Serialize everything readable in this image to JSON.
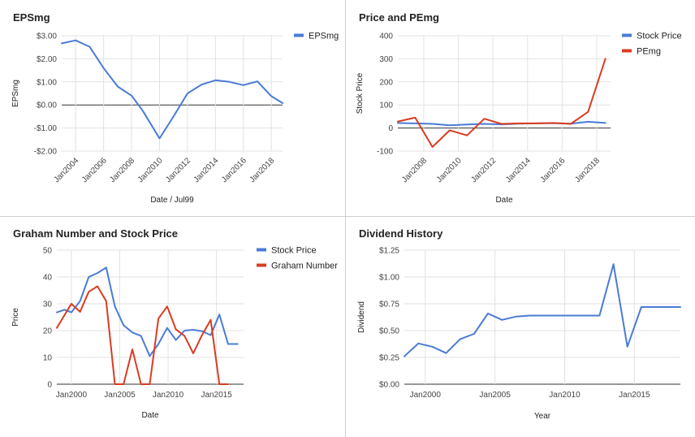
{
  "chart_data": [
    {
      "type": "line",
      "title": "EPSmg",
      "xlabel": "Date / Jul99",
      "ylabel": "EPSmg",
      "x_range": [
        2003,
        2018.8
      ],
      "ylim": [
        -2,
        3
      ],
      "y_ticks": [
        3,
        2,
        1,
        0,
        -1,
        -2
      ],
      "y_tick_labels": [
        "$3.00",
        "$2.00",
        "$1.00",
        "$0.00",
        "-$1.00",
        "-$2.00"
      ],
      "x_ticks": [
        2004,
        2006,
        2008,
        2010,
        2012,
        2014,
        2016,
        2018
      ],
      "x_tick_labels": [
        "Jan2004",
        "Jan2006",
        "Jan2008",
        "Jan2010",
        "Jan2012",
        "Jan2014",
        "Jan2016",
        "Jan2018"
      ],
      "x_label_rotated": true,
      "legend_position": "top-right",
      "series": [
        {
          "name": "EPSmg",
          "color": "#4a7bd6",
          "x": [
            2003.0,
            2004.0,
            2005.0,
            2006.0,
            2007.0,
            2008.0,
            2008.8,
            2010.0,
            2011.0,
            2012.0,
            2013.0,
            2014.0,
            2015.0,
            2016.0,
            2017.0,
            2018.0,
            2018.8
          ],
          "values": [
            2.67,
            2.8,
            2.52,
            1.6,
            0.8,
            0.4,
            -0.25,
            -1.45,
            -0.5,
            0.5,
            0.88,
            1.07,
            1.0,
            0.86,
            1.02,
            0.38,
            0.08
          ]
        }
      ]
    },
    {
      "type": "line",
      "title": "Price and PEmg",
      "xlabel": "Date",
      "ylabel": "Stock Price",
      "x_range": [
        2006.5,
        2018.8
      ],
      "ylim": [
        -100,
        400
      ],
      "y_ticks": [
        400,
        300,
        200,
        100,
        0,
        -100
      ],
      "y_tick_labels": [
        "400",
        "300",
        "200",
        "100",
        "0",
        "-100"
      ],
      "x_ticks": [
        2008,
        2010,
        2012,
        2014,
        2016,
        2018
      ],
      "x_tick_labels": [
        "Jan2008",
        "Jan2010",
        "Jan2012",
        "Jan2014",
        "Jan2016",
        "Jan2018"
      ],
      "x_label_rotated": true,
      "legend_position": "top-right",
      "series": [
        {
          "name": "Stock Price",
          "color": "#4a7bd6",
          "x": [
            2006.5,
            2007.5,
            2008.5,
            2009.5,
            2010.5,
            2011.5,
            2012.5,
            2013.5,
            2014.5,
            2015.5,
            2016.5,
            2017.5,
            2018.5
          ],
          "values": [
            22,
            20,
            18,
            12,
            15,
            18,
            16,
            19,
            20,
            21,
            19,
            27,
            22
          ]
        },
        {
          "name": "PEmg",
          "color": "#d93c21",
          "x": [
            2006.5,
            2007.5,
            2008.5,
            2009.5,
            2010.5,
            2011.5,
            2012.5,
            2013.5,
            2014.5,
            2015.5,
            2016.5,
            2017.5,
            2018.5
          ],
          "values": [
            28,
            45,
            -82,
            -10,
            -32,
            40,
            18,
            20,
            20,
            22,
            18,
            70,
            300
          ]
        }
      ]
    },
    {
      "type": "line",
      "title": "Graham Number and Stock Price",
      "xlabel": "Date",
      "ylabel": "Price",
      "x_range": [
        1998.5,
        2017.8
      ],
      "ylim": [
        0,
        50
      ],
      "y_ticks": [
        50,
        40,
        30,
        20,
        10,
        0
      ],
      "y_tick_labels": [
        "50",
        "40",
        "30",
        "20",
        "10",
        "0"
      ],
      "x_ticks": [
        2000,
        2005,
        2010,
        2015
      ],
      "x_tick_labels": [
        "Jan2000",
        "Jan2005",
        "Jan2010",
        "Jan2015"
      ],
      "x_label_rotated": false,
      "legend_position": "top-right",
      "series": [
        {
          "name": "Stock Price",
          "color": "#4a7bd6",
          "x": [
            1998.5,
            1999.3,
            2000.0,
            2000.9,
            2001.8,
            2002.7,
            2003.6,
            2004.5,
            2005.4,
            2006.3,
            2007.2,
            2008.1,
            2009.0,
            2009.9,
            2010.8,
            2011.7,
            2012.6,
            2013.5,
            2014.4,
            2015.3,
            2016.2,
            2017.2
          ],
          "values": [
            26.8,
            27.8,
            26.8,
            31.0,
            40.0,
            41.5,
            43.5,
            29.0,
            22.0,
            19.3,
            18.0,
            10.5,
            15.0,
            21.0,
            16.5,
            20.0,
            20.3,
            19.8,
            18.3,
            26.0,
            15.0,
            15.0
          ]
        },
        {
          "name": "Graham Number",
          "color": "#d93c21",
          "x": [
            1998.5,
            1999.3,
            2000.0,
            2000.9,
            2001.8,
            2002.7,
            2003.6,
            2004.5,
            2005.4,
            2006.3,
            2007.2,
            2008.1,
            2009.0,
            2009.9,
            2010.8,
            2011.7,
            2012.6,
            2013.5,
            2014.4,
            2015.3,
            2016.2
          ],
          "values": [
            21.0,
            25.8,
            30.0,
            27.0,
            34.5,
            36.5,
            31.0,
            0,
            0,
            13.0,
            0,
            0,
            24.5,
            29.0,
            20.5,
            18.0,
            11.5,
            18.3,
            24.0,
            0,
            0
          ]
        }
      ]
    },
    {
      "type": "line",
      "title": "Dividend History",
      "xlabel": "Year",
      "ylabel": "Dividend",
      "x_range": [
        1998.5,
        2018.3
      ],
      "ylim": [
        0,
        1.25
      ],
      "y_ticks": [
        1.25,
        1.0,
        0.75,
        0.5,
        0.25,
        0
      ],
      "y_tick_labels": [
        "$1.25",
        "$1.00",
        "$0.75",
        "$0.50",
        "$0.25",
        "$0.00"
      ],
      "x_ticks": [
        2000,
        2005,
        2010,
        2015
      ],
      "x_tick_labels": [
        "Jan2000",
        "Jan2005",
        "Jan2010",
        "Jan2015"
      ],
      "x_label_rotated": false,
      "legend_position": "none",
      "series": [
        {
          "color": "#4a7bd6",
          "x": [
            1998.5,
            1999.5,
            2000.5,
            2001.5,
            2002.5,
            2003.5,
            2004.5,
            2005.5,
            2006.5,
            2007.5,
            2008.5,
            2009.5,
            2010.5,
            2011.5,
            2012.5,
            2013.5,
            2014.5,
            2015.5,
            2016.5,
            2017.5,
            2018.3
          ],
          "values": [
            0.26,
            0.38,
            0.35,
            0.29,
            0.42,
            0.47,
            0.66,
            0.6,
            0.63,
            0.64,
            0.64,
            0.64,
            0.64,
            0.64,
            0.64,
            1.12,
            0.35,
            0.72,
            0.72,
            0.72,
            0.72
          ]
        }
      ]
    }
  ]
}
